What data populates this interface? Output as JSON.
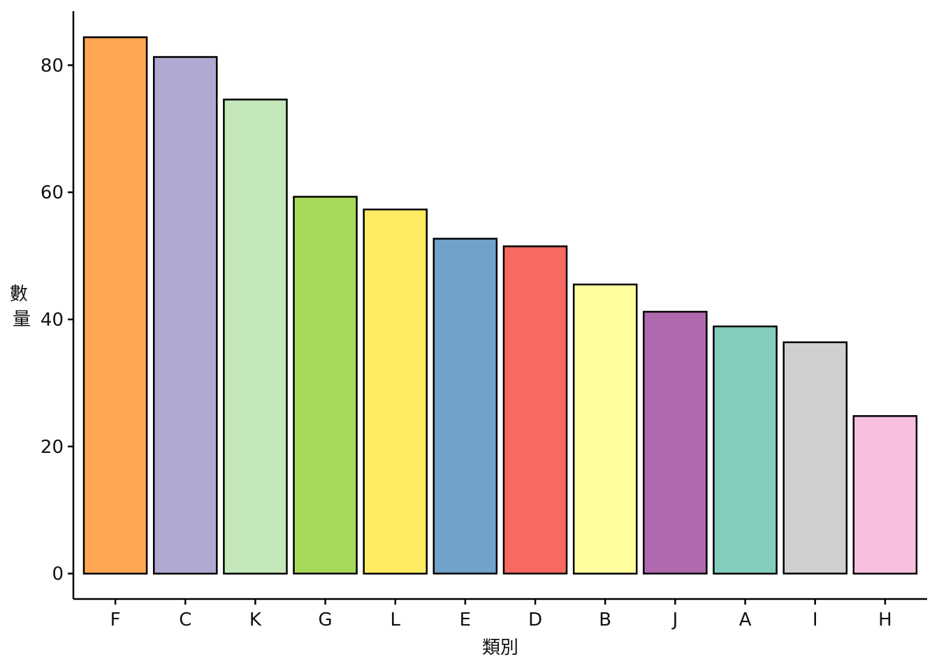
{
  "chart_data": {
    "type": "bar",
    "xlabel": "類別",
    "ylabel": "數量",
    "ylabel_lines": [
      "數",
      "量"
    ],
    "categories": [
      "F",
      "C",
      "K",
      "G",
      "L",
      "E",
      "D",
      "B",
      "J",
      "A",
      "I",
      "H"
    ],
    "values": [
      84.4,
      81.3,
      74.6,
      59.3,
      57.3,
      52.7,
      51.5,
      45.5,
      41.2,
      38.9,
      36.4,
      24.8
    ],
    "colors": [
      "#FDA750",
      "#B0A9D1",
      "#C5E8BB",
      "#A8DA5A",
      "#FEEB61",
      "#70A2CA",
      "#F76961",
      "#FFFFA0",
      "#AF6AAF",
      "#84CEBE",
      "#D0D0D0",
      "#F8C0DF"
    ],
    "yticks": [
      0,
      20,
      40,
      60,
      80
    ],
    "ytick_labels": [
      "0",
      "20",
      "40",
      "60",
      "80"
    ],
    "ylim": [
      -4,
      88.5
    ],
    "grid": false,
    "legend": "none"
  }
}
